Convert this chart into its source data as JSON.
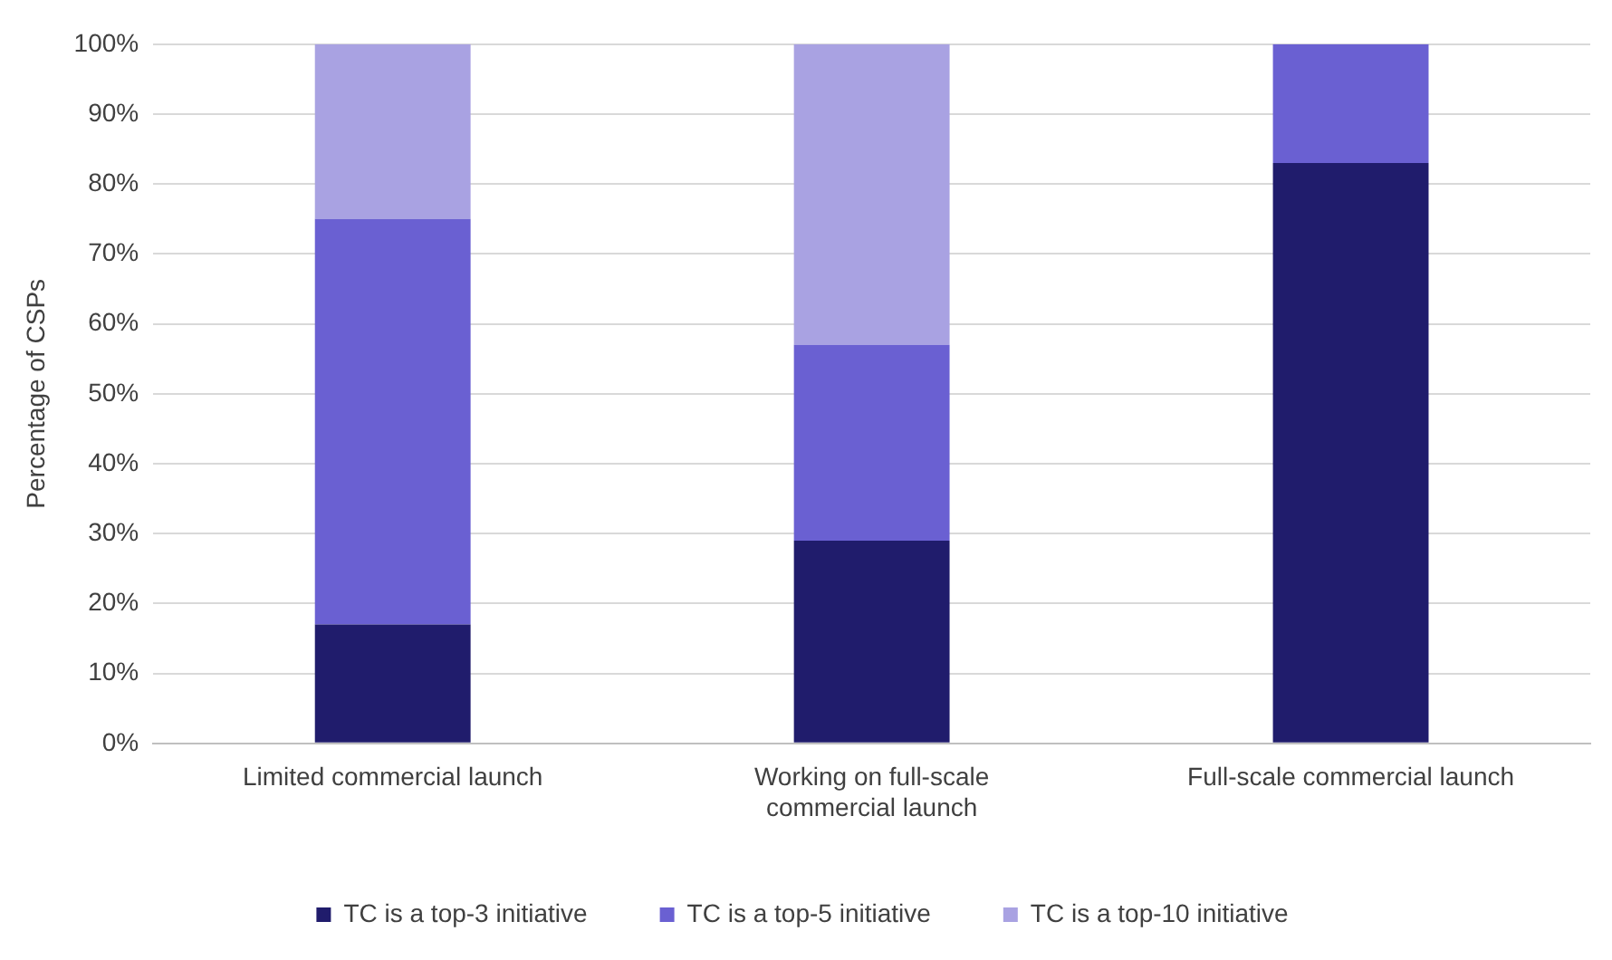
{
  "chart_data": {
    "type": "bar",
    "stacked": true,
    "ylabel": "Percentage of CSPs",
    "categories": [
      "Limited commercial launch",
      "Working on full-scale commercial launch",
      "Full-scale commercial launch"
    ],
    "series": [
      {
        "name": "TC is a top-3 initiative",
        "color": "#201c6c",
        "values": [
          17,
          29,
          83
        ]
      },
      {
        "name": "TC is a top-5 initiative",
        "color": "#6a60d2",
        "values": [
          58,
          28,
          17
        ]
      },
      {
        "name": "TC is a top-10 initiative",
        "color": "#a9a2e2",
        "values": [
          25,
          43,
          null
        ]
      }
    ],
    "ylim": [
      0,
      100
    ],
    "yticks": [
      {
        "value": 0,
        "label": "0%"
      },
      {
        "value": 10,
        "label": "10%"
      },
      {
        "value": 20,
        "label": "20%"
      },
      {
        "value": 30,
        "label": "30%"
      },
      {
        "value": 40,
        "label": "40%"
      },
      {
        "value": 50,
        "label": "50%"
      },
      {
        "value": 60,
        "label": "60%"
      },
      {
        "value": 70,
        "label": "70%"
      },
      {
        "value": 80,
        "label": "80%"
      },
      {
        "value": 90,
        "label": "90%"
      },
      {
        "value": 100,
        "label": "100%"
      }
    ],
    "grid": "y",
    "legend": "bottom"
  }
}
